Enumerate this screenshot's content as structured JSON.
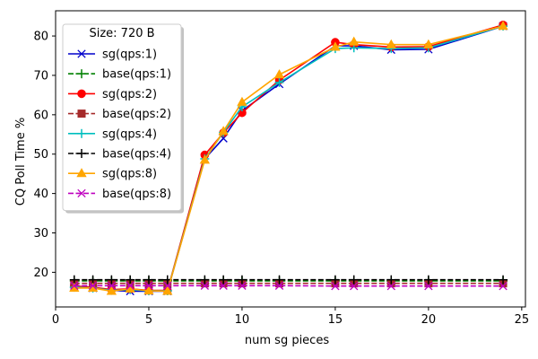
{
  "chart_data": {
    "type": "line",
    "xlabel": "num sg pieces",
    "ylabel": "CQ Poll Time %",
    "xlim": [
      0,
      25.2
    ],
    "ylim": [
      11.2,
      86.4
    ],
    "xticks": [
      0,
      5,
      10,
      15,
      20,
      25
    ],
    "yticks": [
      20,
      30,
      40,
      50,
      60,
      70,
      80
    ],
    "grid": false,
    "legend": {
      "placement": "top-left",
      "title": "Size: 720 B"
    },
    "series": [
      {
        "name": "sg(qps:1)",
        "color": "#0000cc",
        "linestyle": "solid",
        "marker": "x",
        "x": [
          1,
          2,
          3,
          4,
          5,
          6,
          8,
          9,
          10,
          12,
          15,
          16,
          18,
          20,
          24
        ],
        "y": [
          16.2,
          16.0,
          15.4,
          15.2,
          15.2,
          15.2,
          48.8,
          54.0,
          61.0,
          67.8,
          77.5,
          77.5,
          76.5,
          76.6,
          82.5
        ]
      },
      {
        "name": "base(qps:1)",
        "color": "#008000",
        "linestyle": "dashed",
        "marker": "+",
        "x": [
          1,
          2,
          3,
          4,
          5,
          6,
          8,
          9,
          10,
          12,
          15,
          16,
          18,
          20,
          24
        ],
        "y": [
          17.8,
          17.8,
          17.8,
          17.8,
          17.8,
          17.8,
          17.8,
          17.8,
          17.8,
          17.8,
          17.8,
          17.8,
          17.8,
          17.8,
          17.8
        ]
      },
      {
        "name": "sg(qps:2)",
        "color": "#ff0000",
        "linestyle": "solid",
        "marker": "o",
        "x": [
          1,
          2,
          3,
          4,
          5,
          6,
          8,
          9,
          10,
          12,
          15,
          16,
          18,
          20,
          24
        ],
        "y": [
          16.5,
          16.2,
          15.6,
          15.8,
          15.4,
          15.4,
          49.8,
          55.4,
          60.5,
          68.8,
          78.4,
          77.8,
          77.2,
          77.3,
          82.8
        ]
      },
      {
        "name": "base(qps:2)",
        "color": "#a52a2a",
        "linestyle": "dashed",
        "marker": "s",
        "x": [
          1,
          2,
          3,
          4,
          5,
          6,
          8,
          9,
          10,
          12,
          15,
          16,
          18,
          20,
          24
        ],
        "y": [
          17.2,
          17.2,
          17.2,
          17.2,
          17.2,
          17.2,
          17.2,
          17.2,
          17.2,
          17.2,
          17.2,
          17.2,
          17.2,
          17.2,
          17.2
        ]
      },
      {
        "name": "sg(qps:4)",
        "color": "#00bfbf",
        "linestyle": "solid",
        "marker": "+",
        "x": [
          1,
          2,
          3,
          4,
          5,
          6,
          8,
          9,
          10,
          12,
          15,
          16,
          18,
          20,
          24
        ],
        "y": [
          16.2,
          16.0,
          15.4,
          15.6,
          15.3,
          15.3,
          48.8,
          55.5,
          62.0,
          68.2,
          76.8,
          77.0,
          76.8,
          77.0,
          82.5
        ]
      },
      {
        "name": "base(qps:4)",
        "color": "#000000",
        "linestyle": "dashed",
        "marker": "+",
        "x": [
          1,
          2,
          3,
          4,
          5,
          6,
          8,
          9,
          10,
          12,
          15,
          16,
          18,
          20,
          24
        ],
        "y": [
          18.1,
          18.1,
          18.1,
          18.1,
          18.1,
          18.1,
          18.1,
          18.1,
          18.1,
          18.1,
          18.1,
          18.1,
          18.1,
          18.1,
          18.1
        ]
      },
      {
        "name": "sg(qps:8)",
        "color": "#ffa500",
        "linestyle": "solid",
        "marker": "^",
        "x": [
          1,
          2,
          3,
          4,
          5,
          6,
          8,
          9,
          10,
          12,
          15,
          16,
          18,
          20,
          24
        ],
        "y": [
          16.0,
          16.0,
          15.2,
          15.8,
          15.3,
          15.2,
          48.5,
          55.8,
          63.2,
          70.2,
          77.2,
          78.5,
          77.8,
          77.8,
          82.5
        ]
      },
      {
        "name": "base(qps:8)",
        "color": "#bf00bf",
        "linestyle": "dashed",
        "marker": "x",
        "x": [
          1,
          2,
          3,
          4,
          5,
          6,
          8,
          9,
          10,
          12,
          15,
          16,
          18,
          20,
          24
        ],
        "y": [
          16.6,
          16.6,
          16.6,
          16.6,
          16.6,
          16.6,
          16.6,
          16.6,
          16.6,
          16.6,
          16.5,
          16.5,
          16.5,
          16.5,
          16.5
        ]
      }
    ]
  }
}
